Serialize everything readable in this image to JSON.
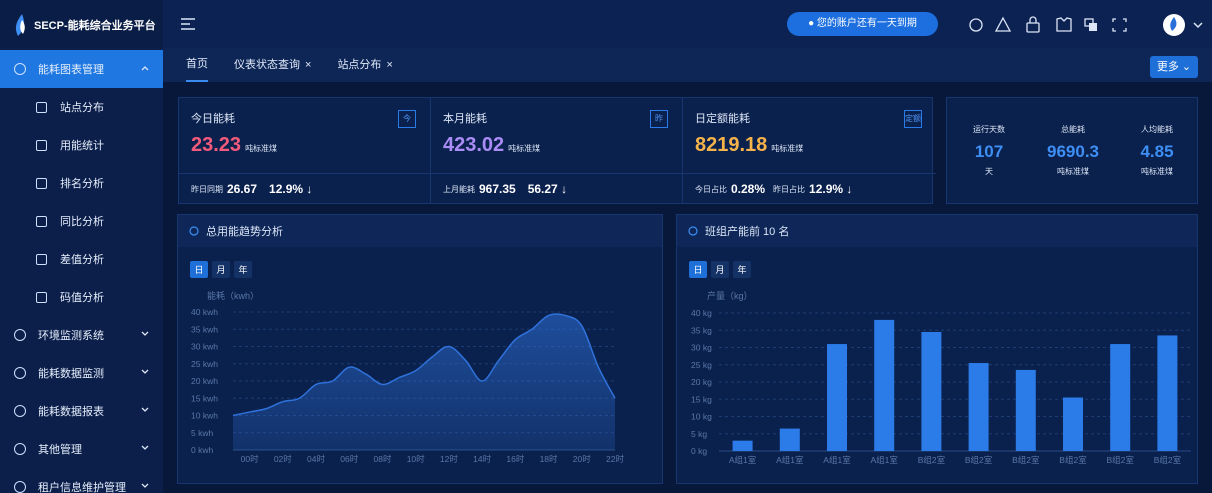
{
  "header": {
    "title": "SECP-能耗综合业务平台",
    "notice": "您的账户还有一天到期"
  },
  "tabs": {
    "items": [
      "首页",
      "仪表状态查询",
      "站点分布"
    ],
    "close": "×",
    "more": "更多"
  },
  "sidebar": {
    "groups": [
      {
        "label": "能耗图表管理",
        "children": [
          "站点分布",
          "用能统计",
          "排名分析",
          "同比分析",
          "差值分析",
          "码值分析"
        ]
      },
      {
        "label": "环境监测系统"
      },
      {
        "label": "能耗数据监测"
      },
      {
        "label": "能耗数据报表"
      },
      {
        "label": "其他管理"
      },
      {
        "label": "租户信息维护管理"
      }
    ]
  },
  "stats": [
    {
      "title": "今日能耗",
      "icon": "今",
      "value": "23.23",
      "unit": "吨标准煤",
      "color": "#f45a7c",
      "footer": [
        {
          "label": "昨日同期",
          "value": "26.67"
        },
        {
          "value": "12.9% ↓"
        }
      ]
    },
    {
      "title": "本月能耗",
      "icon": "昨",
      "value": "423.02",
      "unit": "吨标准煤",
      "color": "#a98cf5",
      "footer": [
        {
          "label": "上月能耗",
          "value": "967.35"
        },
        {
          "value": "56.27 ↓"
        }
      ]
    },
    {
      "title": "日定额能耗",
      "icon": "定额",
      "value": "8219.18",
      "unit": "吨标准煤",
      "color": "#f5b34a",
      "footer": [
        {
          "label": "今日占比",
          "value": "0.28%"
        },
        {
          "label": "昨日占比",
          "value": "12.9% ↓"
        }
      ]
    }
  ],
  "summary": [
    {
      "label": "运行天数",
      "value": "107",
      "unit": "天"
    },
    {
      "label": "总能耗",
      "value": "9690.3",
      "unit": "吨标准煤"
    },
    {
      "label": "人均能耗",
      "value": "4.85",
      "unit": "吨标准煤"
    }
  ],
  "periods": [
    "日",
    "月",
    "年"
  ],
  "chart_data": [
    {
      "type": "line",
      "title": "总用能趋势分析",
      "y_label": "能耗（kwh）",
      "categories": [
        "00时",
        null,
        "02时",
        null,
        "04时",
        null,
        "06时",
        null,
        "08时",
        null,
        "10时",
        null,
        "12时",
        null,
        "14时",
        null,
        "16时",
        null,
        "18时",
        null,
        "20时",
        null,
        "22时",
        null
      ],
      "values": [
        10,
        11,
        12,
        14,
        15,
        19,
        20,
        24,
        22,
        19,
        21,
        23,
        27,
        30,
        26,
        20,
        26,
        32,
        35,
        39,
        39,
        36,
        24,
        15
      ],
      "color": "#2f72dc",
      "ylim": [
        0,
        40
      ],
      "yticks": [
        {
          "value": 0,
          "label": "0 kwh"
        },
        {
          "value": 5,
          "label": "5 kwh"
        },
        {
          "value": 10,
          "label": "10 kwh"
        },
        {
          "value": 15,
          "label": "15 kwh"
        },
        {
          "value": 20,
          "label": "20 kwh"
        },
        {
          "value": 25,
          "label": "25 kwh"
        },
        {
          "value": 30,
          "label": "30 kwh"
        },
        {
          "value": 35,
          "label": "35 kwh"
        },
        {
          "value": 40,
          "label": "40 kwh"
        }
      ],
      "grid": true
    },
    {
      "type": "bar",
      "title": "班组产能前 10 名",
      "y_label": "产量（kg）",
      "categories": [
        "A组1室",
        "A组1室",
        "A组1室",
        "A组1室",
        "B组2室",
        "B组2室",
        "B组2室",
        "B组2室",
        "B组2室",
        "B组2室"
      ],
      "values": [
        3,
        6.5,
        31,
        38,
        34.5,
        25.5,
        23.5,
        15.5,
        31,
        33.5
      ],
      "color": "#2b7be9",
      "ylim": [
        0,
        40
      ],
      "yticks": [
        {
          "value": 0,
          "label": "0 kg"
        },
        {
          "value": 5,
          "label": "5 kg"
        },
        {
          "value": 10,
          "label": "10 kg"
        },
        {
          "value": 15,
          "label": "15 kg"
        },
        {
          "value": 20,
          "label": "20 kg"
        },
        {
          "value": 25,
          "label": "25 kg"
        },
        {
          "value": 30,
          "label": "30 kg"
        },
        {
          "value": 35,
          "label": "35 kg"
        },
        {
          "value": 40,
          "label": "40 kg"
        }
      ],
      "grid": true
    }
  ]
}
